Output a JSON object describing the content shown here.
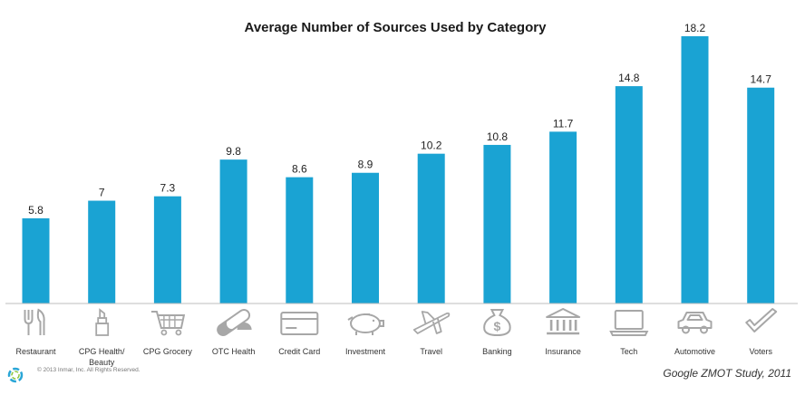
{
  "chart_data": {
    "type": "bar",
    "title": "Average Number of Sources Used by Category",
    "categories": [
      "Restaurant",
      "CPG Health/ Beauty",
      "CPG Grocery",
      "OTC Health",
      "Credit Card",
      "Investment",
      "Travel",
      "Banking",
      "Insurance",
      "Tech",
      "Automotive",
      "Voters"
    ],
    "category_lines": [
      [
        "Restaurant"
      ],
      [
        "CPG Health/",
        "Beauty"
      ],
      [
        "CPG Grocery"
      ],
      [
        "OTC Health"
      ],
      [
        "Credit Card"
      ],
      [
        "Investment"
      ],
      [
        "Travel"
      ],
      [
        "Banking"
      ],
      [
        "Insurance"
      ],
      [
        "Tech"
      ],
      [
        "Automotive"
      ],
      [
        "Voters"
      ]
    ],
    "values": [
      5.8,
      7,
      7.3,
      9.8,
      8.6,
      8.9,
      10.2,
      10.8,
      11.7,
      14.8,
      18.2,
      14.7
    ],
    "value_labels": [
      "5.8",
      "7",
      "7.3",
      "9.8",
      "8.6",
      "8.9",
      "10.2",
      "10.8",
      "11.7",
      "14.8",
      "18.2",
      "14.7"
    ],
    "icons": [
      "fork-knife-icon",
      "lipstick-icon",
      "shopping-cart-icon",
      "pill-icon",
      "credit-card-icon",
      "piggy-bank-icon",
      "airplane-icon",
      "money-bag-icon",
      "bank-building-icon",
      "laptop-icon",
      "car-icon",
      "checkmark-icon"
    ],
    "ylim": [
      0,
      18.2
    ],
    "grid": false,
    "bar_color": "#1aa3d3",
    "icon_color": "#a7a7a7",
    "xlabel": "",
    "ylabel": ""
  },
  "footer": {
    "copyright": "© 2013 Inmar, Inc. All Rights Reserved.",
    "source": "Google ZMOT Study, 2011"
  }
}
